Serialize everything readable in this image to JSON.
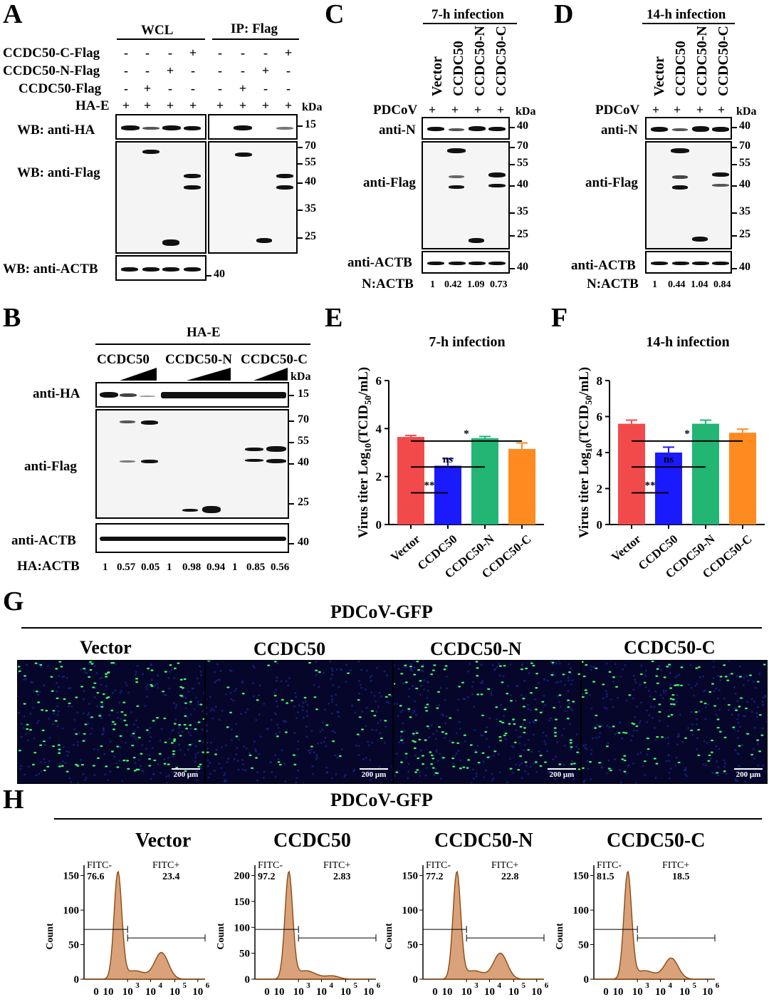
{
  "panels": {
    "A": "A",
    "B": "B",
    "C": "C",
    "D": "D",
    "E": "E",
    "F": "F",
    "G": "G",
    "H": "H"
  },
  "a": {
    "wcl": "WCL",
    "ip": "IP: Flag",
    "rows": [
      "CCDC50-C-Flag",
      "CCDC50-N-Flag",
      "CCDC50-Flag",
      "HA-E"
    ],
    "kda": "kDa",
    "blot_labels": [
      "WB: anti-HA",
      "WB: anti-Flag",
      "WB: anti-ACTB"
    ],
    "markers": [
      "15",
      "70",
      "55",
      "40",
      "35",
      "25",
      "40"
    ],
    "signs": {
      "plus": "+",
      "minus": "-"
    }
  },
  "b": {
    "hae": "HA-E",
    "groups": [
      "CCDC50",
      "CCDC50-N",
      "CCDC50-C"
    ],
    "kda": "kDa",
    "blot_labels": [
      "anti-HA",
      "anti-Flag",
      "anti-ACTB"
    ],
    "markers": [
      "15",
      "70",
      "55",
      "40",
      "25",
      "40"
    ],
    "ratio_label": "HA:ACTB",
    "ratios": [
      "1",
      "0.57",
      "0.05",
      "1",
      "0.98",
      "0.94",
      "1",
      "0.85",
      "0.56"
    ]
  },
  "c": {
    "title": "7-h infection",
    "lanes": [
      "Vector",
      "CCDC50",
      "CCDC50-N",
      "CCDC50-C"
    ],
    "pdcov": "PDCoV",
    "kda": "kDa",
    "blot_labels": [
      "anti-N",
      "anti-Flag",
      "anti-ACTB"
    ],
    "markers": [
      "40",
      "70",
      "55",
      "40",
      "35",
      "25",
      "40"
    ],
    "ratio_label": "N:ACTB",
    "ratios": [
      "1",
      "0.42",
      "1.09",
      "0.73"
    ]
  },
  "d": {
    "title": "14-h infection",
    "lanes": [
      "Vector",
      "CCDC50",
      "CCDC50-N",
      "CCDC50-C"
    ],
    "pdcov": "PDCoV",
    "kda": "kDa",
    "blot_labels": [
      "anti-N",
      "anti-Flag",
      "anti-ACTB"
    ],
    "markers": [
      "40",
      "70",
      "55",
      "40",
      "35",
      "25",
      "40"
    ],
    "ratio_label": "N:ACTB",
    "ratios": [
      "1",
      "0.44",
      "1.04",
      "0.84"
    ]
  },
  "chart_data": [
    {
      "type": "bar",
      "title": "7-h infection",
      "ylabel": "Virus titer Log10(TCID50/mL)",
      "categories": [
        "Vector",
        "CCDC50",
        "CCDC50-N",
        "CCDC50-C"
      ],
      "values": [
        3.65,
        2.45,
        3.6,
        3.15
      ],
      "errors": [
        0.06,
        0.3,
        0.07,
        0.25
      ],
      "colors": [
        "#f24a4a",
        "#1a1aff",
        "#22b573",
        "#ff8a1f"
      ],
      "ylim": [
        0,
        6
      ],
      "yticks": [
        "0",
        "2",
        "4",
        "6"
      ],
      "significance": [
        {
          "label": "**",
          "from": "Vector",
          "to": "CCDC50"
        },
        {
          "label": "ns",
          "from": "Vector",
          "to": "CCDC50-N"
        },
        {
          "label": "*",
          "from": "Vector",
          "to": "CCDC50-C"
        }
      ]
    },
    {
      "type": "bar",
      "title": "14-h infection",
      "ylabel": "Virus titer Log10(TCID50/mL)",
      "categories": [
        "Vector",
        "CCDC50",
        "CCDC50-N",
        "CCDC50-C"
      ],
      "values": [
        5.6,
        4.0,
        5.6,
        5.1
      ],
      "errors": [
        0.2,
        0.3,
        0.2,
        0.2
      ],
      "colors": [
        "#f24a4a",
        "#1a1aff",
        "#22b573",
        "#ff8a1f"
      ],
      "ylim": [
        0,
        8
      ],
      "yticks": [
        "0",
        "2",
        "4",
        "6",
        "8"
      ],
      "significance": [
        {
          "label": "**",
          "from": "Vector",
          "to": "CCDC50"
        },
        {
          "label": "ns",
          "from": "Vector",
          "to": "CCDC50-N"
        },
        {
          "label": "*",
          "from": "Vector",
          "to": "CCDC50-C"
        }
      ]
    }
  ],
  "g": {
    "title": "PDCoV-GFP",
    "images": [
      "Vector",
      "CCDC50",
      "CCDC50-N",
      "CCDC50-C"
    ],
    "scale": "200 μm",
    "colors": {
      "background": "#06062a",
      "gfp": "#3dff6a"
    }
  },
  "h": {
    "title": "PDCoV-GFP",
    "ylabel": "Count",
    "neg": "FITC-",
    "pos": "FITC+",
    "xticks": [
      "0",
      "10",
      "10",
      "10",
      "10",
      "10"
    ],
    "xexp": [
      "3",
      "4",
      "5",
      "6"
    ],
    "plots": [
      {
        "name": "Vector",
        "neg": "76.6",
        "pos": "23.4",
        "yticks": [
          "0",
          "50",
          "100",
          "150"
        ]
      },
      {
        "name": "CCDC50",
        "neg": "97.2",
        "pos": "2.83",
        "yticks": [
          "0",
          "50",
          "100",
          "150",
          "200"
        ]
      },
      {
        "name": "CCDC50-N",
        "neg": "77.2",
        "pos": "22.8",
        "yticks": [
          "0",
          "50",
          "100",
          "150"
        ]
      },
      {
        "name": "CCDC50-C",
        "neg": "81.5",
        "pos": "18.5",
        "yticks": [
          "0",
          "50",
          "100",
          "150"
        ]
      }
    ],
    "colors": {
      "fill": "#d9a27a",
      "line": "#8b4a12"
    }
  }
}
